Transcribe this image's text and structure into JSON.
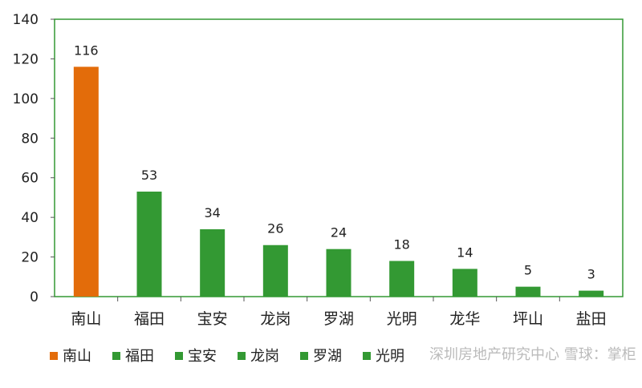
{
  "chart_data": {
    "type": "bar",
    "categories": [
      "南山",
      "福田",
      "宝安",
      "龙岗",
      "罗湖",
      "光明",
      "龙华",
      "坪山",
      "盐田"
    ],
    "values": [
      116,
      53,
      34,
      26,
      24,
      18,
      14,
      5,
      3
    ],
    "bar_colors": [
      "#E36C0A",
      "#339933",
      "#339933",
      "#339933",
      "#339933",
      "#339933",
      "#339933",
      "#339933",
      "#339933"
    ],
    "ylim": [
      0,
      140
    ],
    "yticks": [
      0,
      20,
      40,
      60,
      80,
      100,
      120,
      140
    ],
    "grid": false,
    "frame_color": "#339933",
    "legend": {
      "placement": "bottom",
      "entries": [
        {
          "label": "南山",
          "color": "#E36C0A"
        },
        {
          "label": "福田",
          "color": "#339933"
        },
        {
          "label": "宝安",
          "color": "#339933"
        },
        {
          "label": "龙岗",
          "color": "#339933"
        },
        {
          "label": "罗湖",
          "color": "#339933"
        },
        {
          "label": "光明",
          "color": "#339933"
        }
      ]
    },
    "watermark": "深圳房地产研究中心 雪球：掌柜"
  }
}
